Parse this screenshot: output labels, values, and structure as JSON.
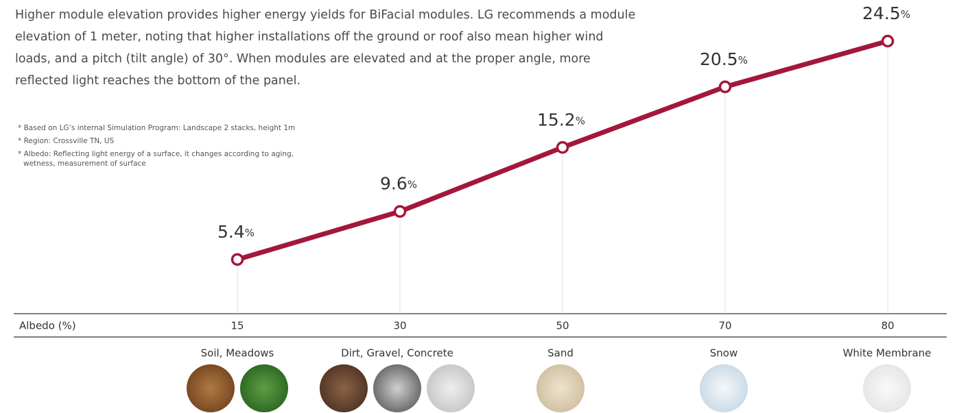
{
  "intro": "Higher module elevation provides higher energy yields for BiFacial modules. LG recommends a module elevation of 1 meter, noting that higher installations off the ground or roof also mean higher wind loads, and a pitch (tilt angle) of 30°. When modules are elevated and at the proper angle, more reflected light reaches the bottom of the panel.",
  "notes": [
    "* Based on LG’s internal Simulation Program: Landscape 2 stacks, height 1m",
    "* Region: Crossville TN, US",
    "* Albedo: Reflecting light energy of a surface, it changes according to aging, wetness, measurement of surface"
  ],
  "chart_data": {
    "type": "line",
    "x_label": "Albedo (%)",
    "categories": [
      "15",
      "30",
      "50",
      "70",
      "80"
    ],
    "values": [
      5.4,
      9.6,
      15.2,
      20.5,
      24.5
    ],
    "value_labels": [
      "5.4%",
      "9.6%",
      "15.2%",
      "20.5%",
      "24.5%"
    ],
    "color": "#a4173a",
    "surfaces": [
      "Soil, Meadows",
      "Dirt, Gravel, Concrete",
      "Sand",
      "Snow",
      "White Membrane"
    ]
  }
}
